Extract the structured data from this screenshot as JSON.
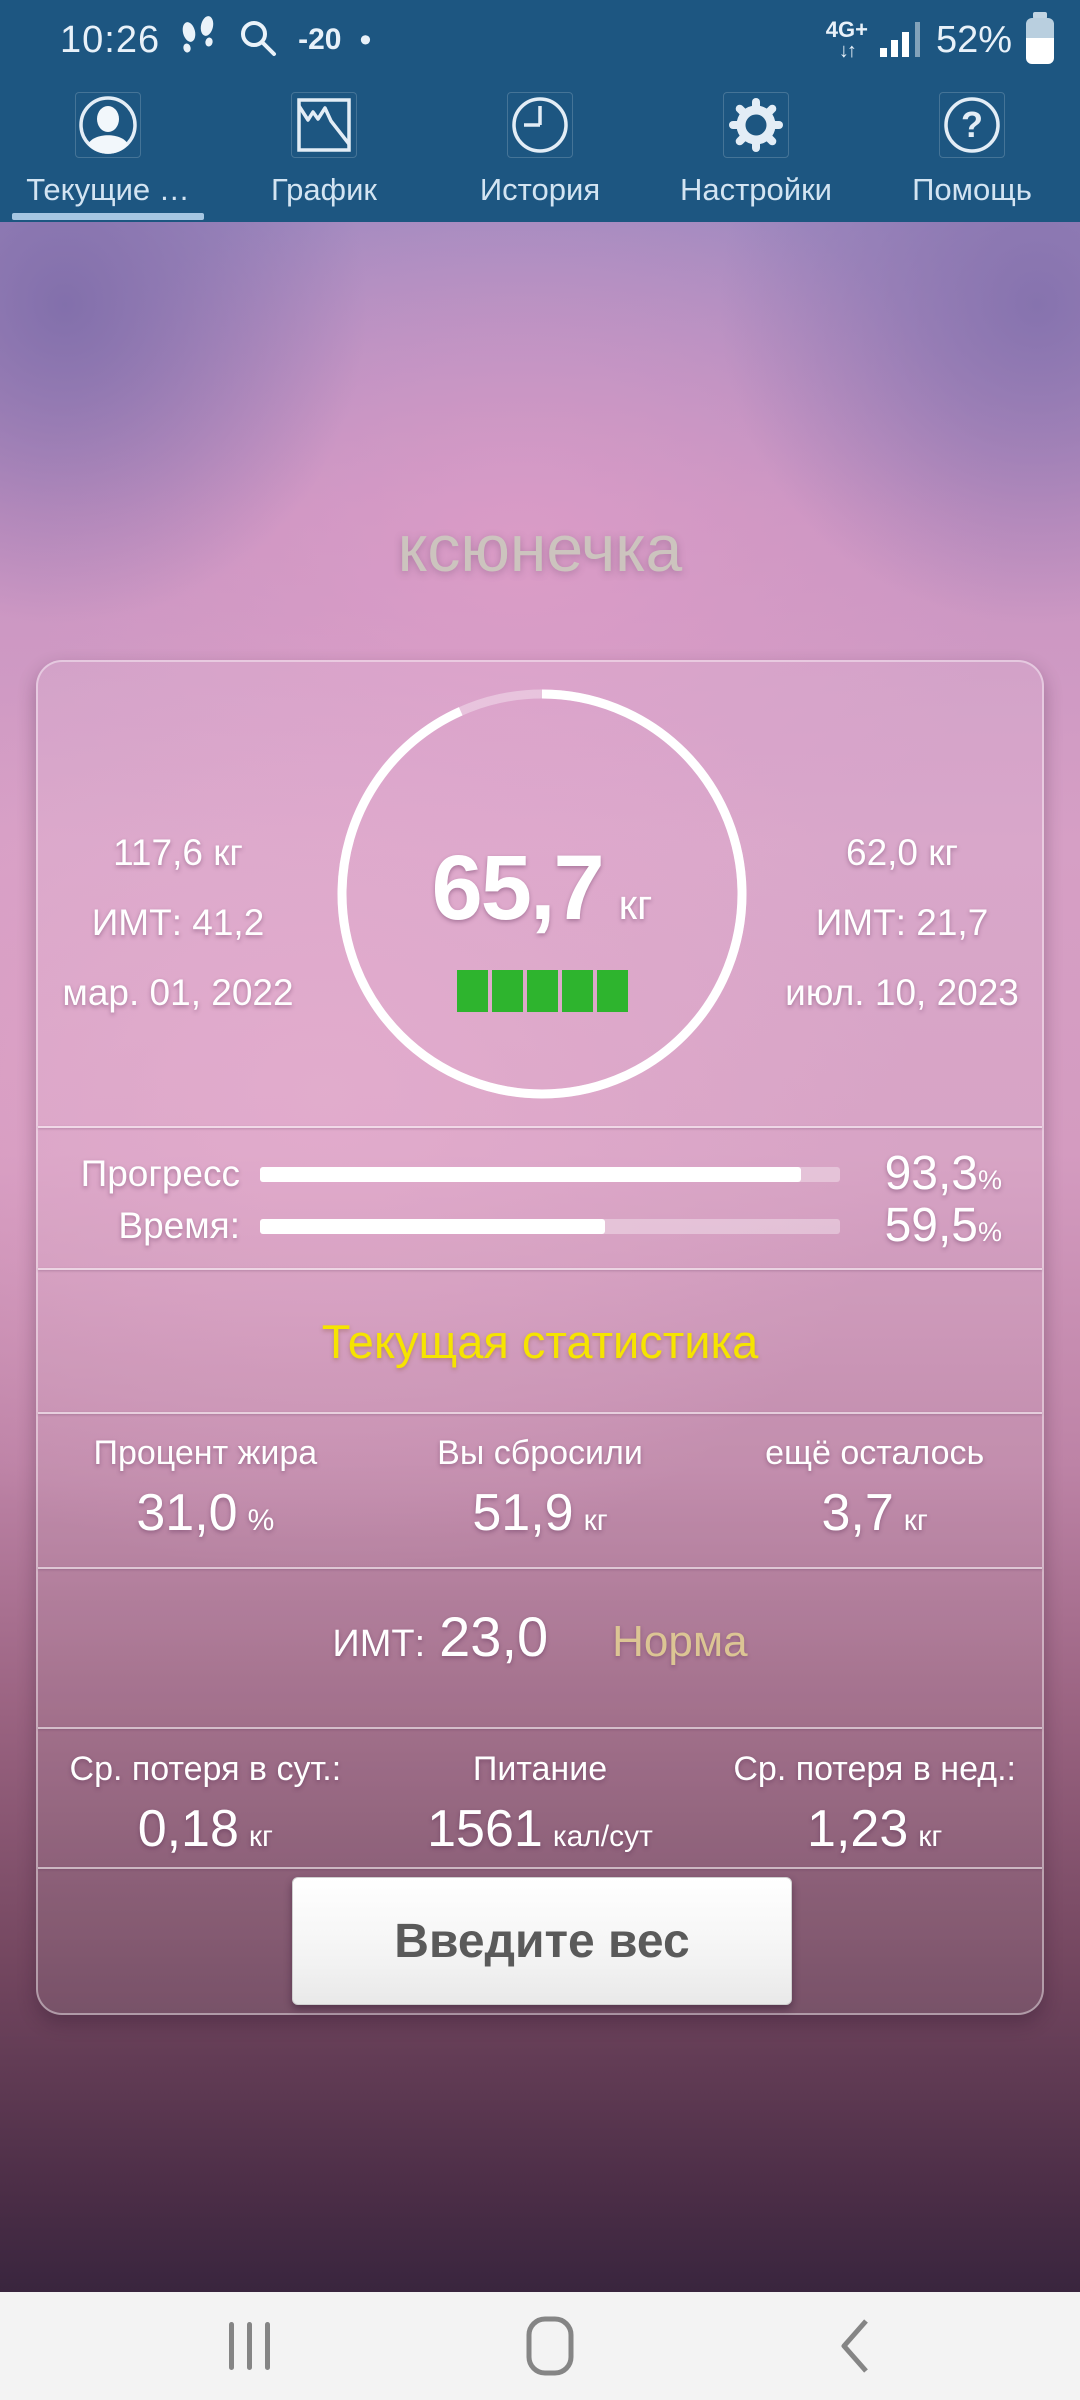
{
  "status_bar": {
    "time": "10:26",
    "signal_note": "-20",
    "dot": "•",
    "network_type": "4G+",
    "network_arrows": "↓↑",
    "battery_percent": "52%"
  },
  "tabs": [
    {
      "label": "Текущие …",
      "icon": "profile-icon",
      "active": true
    },
    {
      "label": "График",
      "icon": "chart-icon",
      "active": false
    },
    {
      "label": "История",
      "icon": "history-clock-icon",
      "active": false
    },
    {
      "label": "Настройки",
      "icon": "settings-gear-icon",
      "active": false
    },
    {
      "label": "Помощь",
      "icon": "help-icon",
      "active": false
    }
  ],
  "profile": {
    "name": "ксюнечка"
  },
  "main_card": {
    "ring_percent": 93.3,
    "current_weight": {
      "value": "65,7",
      "unit": "кг"
    },
    "weight_blocks": 5,
    "start": {
      "weight": "117,6 кг",
      "bmi": "ИМТ: 41,2",
      "date": "мар. 01, 2022"
    },
    "goal": {
      "weight": "62,0 кг",
      "bmi": "ИМТ: 21,7",
      "date": "июл. 10, 2023"
    },
    "progress_rows": [
      {
        "label": "Прогресс",
        "value": "93,3",
        "unit": "%",
        "percent": 93.3
      },
      {
        "label": "Время:",
        "value": "59,5",
        "unit": "%",
        "percent": 59.5
      }
    ],
    "stats_title": "Текущая статистика",
    "stats": [
      {
        "label": "Процент жира",
        "value": "31,0",
        "unit": "%"
      },
      {
        "label": "Вы сбросили",
        "value": "51,9",
        "unit": "кг"
      },
      {
        "label": "ещё осталось",
        "value": "3,7",
        "unit": "кг"
      }
    ],
    "bmi_row": {
      "label": "ИМТ:",
      "value": "23,0",
      "status": "Норма"
    },
    "bottom_stats": [
      {
        "label": "Ср. потеря в сут.:",
        "value": "0,18",
        "unit": "кг"
      },
      {
        "label": "Питание",
        "value": "1561",
        "unit": "кал/сут"
      },
      {
        "label": "Ср. потеря в нед.:",
        "value": "1,23",
        "unit": "кг"
      }
    ],
    "enter_weight_button": "Введите вес"
  },
  "colors": {
    "header_blue": "#1d5681",
    "active_tab_underline": "#a6c6e2",
    "stats_title_yellow": "#f6e400",
    "bmi_status_tan": "#dcc594",
    "blocks_green": "#2eb42e",
    "navbar_gray": "#f3f3f3"
  }
}
